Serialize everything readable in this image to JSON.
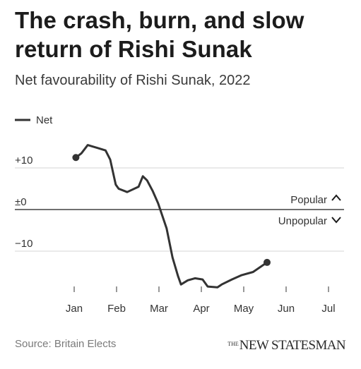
{
  "header": {
    "title": "The crash, burn, and slow return of Rishi Sunak",
    "subtitle": "Net favourability of Rishi Sunak, 2022"
  },
  "footer": {
    "source": "Source: Britain Elects",
    "brand_prefix": "THE",
    "brand_name": "NEW STATESMAN"
  },
  "chart_data": {
    "type": "line",
    "title": "",
    "xlabel": "",
    "ylabel": "",
    "ylim": [
      -20,
      17
    ],
    "x_tick_labels": [
      "Jan",
      "Feb",
      "Mar",
      "Apr",
      "May",
      "Jun",
      "Jul"
    ],
    "x_tick_months": [
      1,
      2,
      3,
      4,
      5,
      6,
      7
    ],
    "y_ticks": [
      {
        "value": 10,
        "label": "+10"
      },
      {
        "value": 0,
        "label": "±0"
      },
      {
        "value": -10,
        "label": "−10"
      }
    ],
    "zero_annotations": {
      "above": "Popular",
      "below": "Unpopular"
    },
    "grid": true,
    "legend": {
      "position": "top-left"
    },
    "series": [
      {
        "name": "Net",
        "color": "#333333",
        "points": [
          [
            1.04,
            12.5
          ],
          [
            1.17,
            13.5
          ],
          [
            1.32,
            15.5
          ],
          [
            1.55,
            14.8
          ],
          [
            1.74,
            14.2
          ],
          [
            1.85,
            12.0
          ],
          [
            1.98,
            6.0
          ],
          [
            2.05,
            5.0
          ],
          [
            2.25,
            4.2
          ],
          [
            2.52,
            5.5
          ],
          [
            2.62,
            8.0
          ],
          [
            2.72,
            7.0
          ],
          [
            2.85,
            4.5
          ],
          [
            2.98,
            1.5
          ],
          [
            3.18,
            -4.5
          ],
          [
            3.32,
            -11.5
          ],
          [
            3.45,
            -16.0
          ],
          [
            3.52,
            -18.0
          ],
          [
            3.68,
            -17.0
          ],
          [
            3.85,
            -16.5
          ],
          [
            4.03,
            -16.8
          ],
          [
            4.15,
            -18.5
          ],
          [
            4.38,
            -18.7
          ],
          [
            4.48,
            -18.0
          ],
          [
            4.72,
            -16.8
          ],
          [
            4.94,
            -15.8
          ],
          [
            5.22,
            -15.0
          ],
          [
            5.55,
            -12.7
          ]
        ],
        "markers": [
          [
            1.04,
            12.5
          ],
          [
            5.55,
            -12.7
          ]
        ]
      }
    ]
  }
}
